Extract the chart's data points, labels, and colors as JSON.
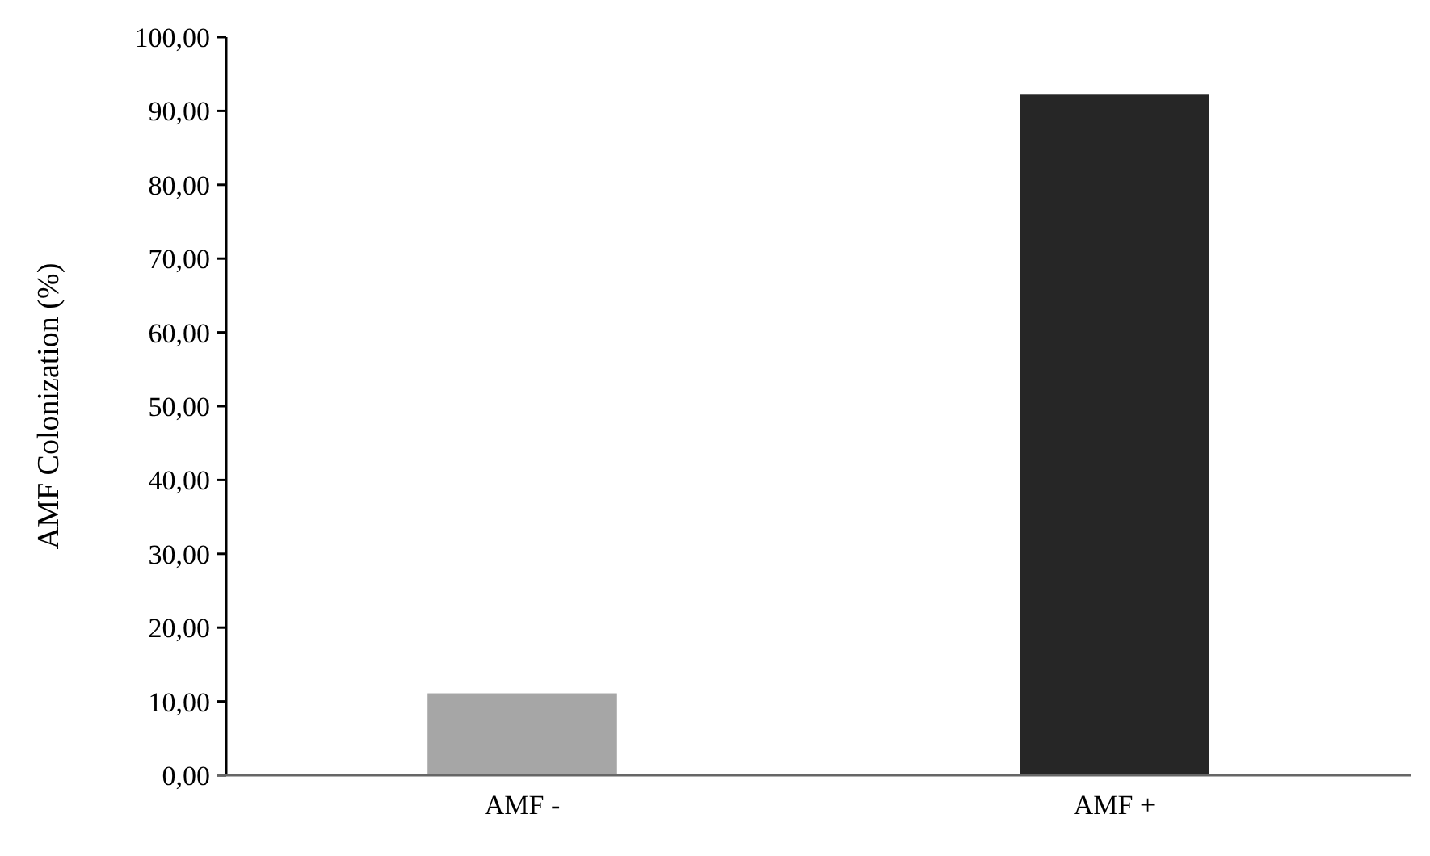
{
  "chart_data": {
    "type": "bar",
    "ylabel": "AMF Colonization (%)",
    "categories": [
      "AMF -",
      "AMF +"
    ],
    "values": [
      11.1,
      92.2
    ],
    "colors": [
      "#a6a6a6",
      "#262626"
    ],
    "ylim": [
      0,
      100
    ],
    "yticks": [
      {
        "value": 0,
        "label": "0,00"
      },
      {
        "value": 10,
        "label": "10,00"
      },
      {
        "value": 20,
        "label": "20,00"
      },
      {
        "value": 30,
        "label": "30,00"
      },
      {
        "value": 40,
        "label": "40,00"
      },
      {
        "value": 50,
        "label": "50,00"
      },
      {
        "value": 60,
        "label": "60,00"
      },
      {
        "value": 70,
        "label": "70,00"
      },
      {
        "value": 80,
        "label": "80,00"
      },
      {
        "value": 90,
        "label": "90,00"
      },
      {
        "value": 100,
        "label": "100,00"
      }
    ],
    "grid": false
  }
}
